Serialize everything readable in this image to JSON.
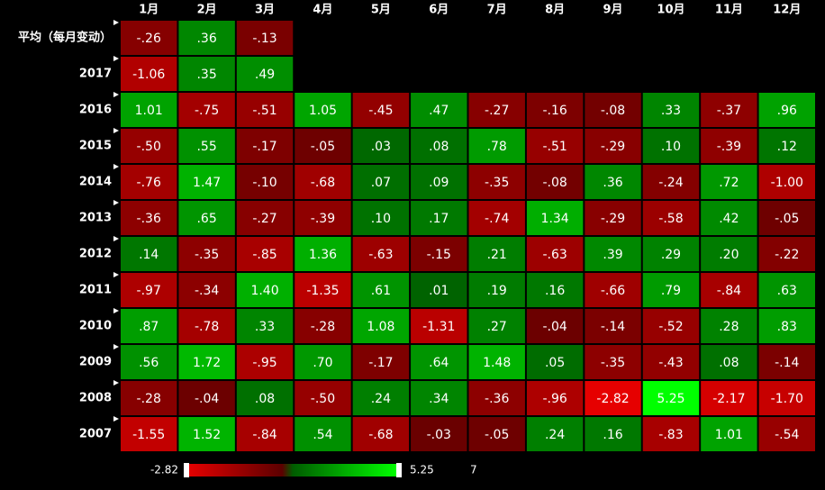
{
  "chart_data": {
    "type": "heatmap",
    "categories": [
      "1月",
      "2月",
      "3月",
      "4月",
      "5月",
      "6月",
      "7月",
      "8月",
      "9月",
      "10月",
      "11月",
      "12月"
    ],
    "rows": [
      "平均（每月变动）",
      "2017",
      "2016",
      "2015",
      "2014",
      "2013",
      "2012",
      "2011",
      "2010",
      "2009",
      "2008",
      "2007"
    ],
    "values": [
      [
        -0.26,
        0.36,
        -0.13,
        null,
        null,
        null,
        null,
        null,
        null,
        null,
        null,
        null
      ],
      [
        -1.06,
        0.35,
        0.49,
        null,
        null,
        null,
        null,
        null,
        null,
        null,
        null,
        null
      ],
      [
        1.01,
        -0.75,
        -0.51,
        1.05,
        -0.45,
        0.47,
        -0.27,
        -0.16,
        -0.08,
        0.33,
        -0.37,
        0.96
      ],
      [
        -0.5,
        0.55,
        -0.17,
        -0.05,
        0.03,
        0.08,
        0.78,
        -0.51,
        -0.29,
        0.1,
        -0.39,
        0.12
      ],
      [
        -0.76,
        1.47,
        -0.1,
        -0.68,
        0.07,
        0.09,
        -0.35,
        -0.08,
        0.36,
        -0.24,
        0.72,
        -1.0
      ],
      [
        -0.36,
        0.65,
        -0.27,
        -0.39,
        0.1,
        0.17,
        -0.74,
        1.34,
        -0.29,
        -0.58,
        0.42,
        -0.05
      ],
      [
        0.14,
        -0.35,
        -0.85,
        1.36,
        -0.63,
        -0.15,
        0.21,
        -0.63,
        0.39,
        0.29,
        0.2,
        -0.22
      ],
      [
        -0.97,
        -0.34,
        1.4,
        -1.35,
        0.61,
        0.01,
        0.19,
        0.16,
        -0.66,
        0.79,
        -0.84,
        0.63
      ],
      [
        0.87,
        -0.78,
        0.33,
        -0.28,
        1.08,
        -1.31,
        0.27,
        -0.04,
        -0.14,
        -0.52,
        0.28,
        0.83
      ],
      [
        0.56,
        1.72,
        -0.95,
        0.7,
        -0.17,
        0.64,
        1.48,
        0.05,
        -0.35,
        -0.43,
        0.08,
        -0.14
      ],
      [
        -0.28,
        -0.04,
        0.08,
        -0.5,
        0.24,
        0.34,
        -0.36,
        -0.96,
        -2.82,
        5.25,
        -2.17,
        -1.7
      ],
      [
        -1.55,
        1.52,
        -0.84,
        0.54,
        -0.68,
        -0.03,
        -0.05,
        0.24,
        0.16,
        -0.83,
        1.01,
        -0.54
      ]
    ],
    "value_labels": [
      [
        "-.26",
        ".36",
        "-.13",
        null,
        null,
        null,
        null,
        null,
        null,
        null,
        null,
        null
      ],
      [
        "-1.06",
        ".35",
        ".49",
        null,
        null,
        null,
        null,
        null,
        null,
        null,
        null,
        null
      ],
      [
        "1.01",
        "-.75",
        "-.51",
        "1.05",
        "-.45",
        ".47",
        "-.27",
        "-.16",
        "-.08",
        ".33",
        "-.37",
        ".96"
      ],
      [
        "-.50",
        ".55",
        "-.17",
        "-.05",
        ".03",
        ".08",
        ".78",
        "-.51",
        "-.29",
        ".10",
        "-.39",
        ".12"
      ],
      [
        "-.76",
        "1.47",
        "-.10",
        "-.68",
        ".07",
        ".09",
        "-.35",
        "-.08",
        ".36",
        "-.24",
        ".72",
        "-1.00"
      ],
      [
        "-.36",
        ".65",
        "-.27",
        "-.39",
        ".10",
        ".17",
        "-.74",
        "1.34",
        "-.29",
        "-.58",
        ".42",
        "-.05"
      ],
      [
        ".14",
        "-.35",
        "-.85",
        "1.36",
        "-.63",
        "-.15",
        ".21",
        "-.63",
        ".39",
        ".29",
        ".20",
        "-.22"
      ],
      [
        "-.97",
        "-.34",
        "1.40",
        "-1.35",
        ".61",
        ".01",
        ".19",
        ".16",
        "-.66",
        ".79",
        "-.84",
        ".63"
      ],
      [
        ".87",
        "-.78",
        ".33",
        "-.28",
        "1.08",
        "-1.31",
        ".27",
        "-.04",
        "-.14",
        "-.52",
        ".28",
        ".83"
      ],
      [
        ".56",
        "1.72",
        "-.95",
        ".70",
        "-.17",
        ".64",
        "1.48",
        ".05",
        "-.35",
        "-.43",
        ".08",
        "-.14"
      ],
      [
        "-.28",
        "-.04",
        ".08",
        "-.50",
        ".24",
        ".34",
        "-.36",
        "-.96",
        "-2.82",
        "5.25",
        "-2.17",
        "-1.70"
      ],
      [
        "-1.55",
        "1.52",
        "-.84",
        ".54",
        "-.68",
        "-.03",
        "-.05",
        ".24",
        ".16",
        "-.83",
        "1.01",
        "-.54"
      ]
    ],
    "legend_min": -2.82,
    "legend_max": 5.25,
    "legend_note": "7",
    "colors": {
      "low": "#e60000",
      "low_mid": "#5c0000",
      "high_mid": "#005c00",
      "high": "#00ff00"
    }
  }
}
